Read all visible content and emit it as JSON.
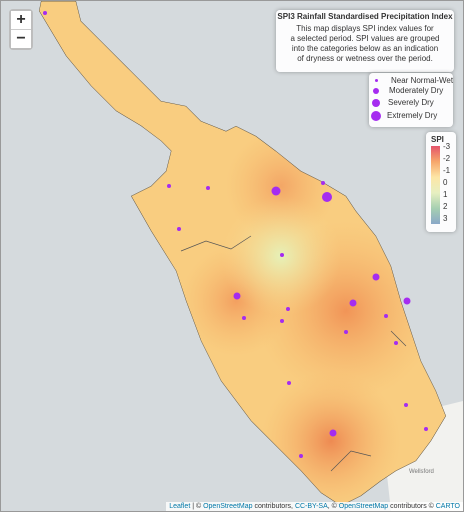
{
  "zoom": {
    "in": "+",
    "out": "−"
  },
  "info": {
    "title": "SPI3 Rainfall Standardised Precipitation Index",
    "lines": [
      "This map displays SPI index values for",
      "a selected period. SPI values are grouped",
      "into the categories below as an indication",
      "of dryness or wetness over the period."
    ]
  },
  "legend": [
    "Near Normal-Wet",
    "Moderately Dry",
    "Severely Dry",
    "Extremely Dry"
  ],
  "colorbar": {
    "title": "SPI",
    "ticks": [
      -3,
      -2,
      -1,
      0,
      1,
      2,
      3
    ]
  },
  "place": "Wellsford",
  "attribution": [
    "Leaflet",
    " | © ",
    "OpenStreetMap",
    " contributors, ",
    "CC-BY-SA",
    ", © ",
    "OpenStreetMap",
    " contributors © ",
    "CARTO"
  ]
}
